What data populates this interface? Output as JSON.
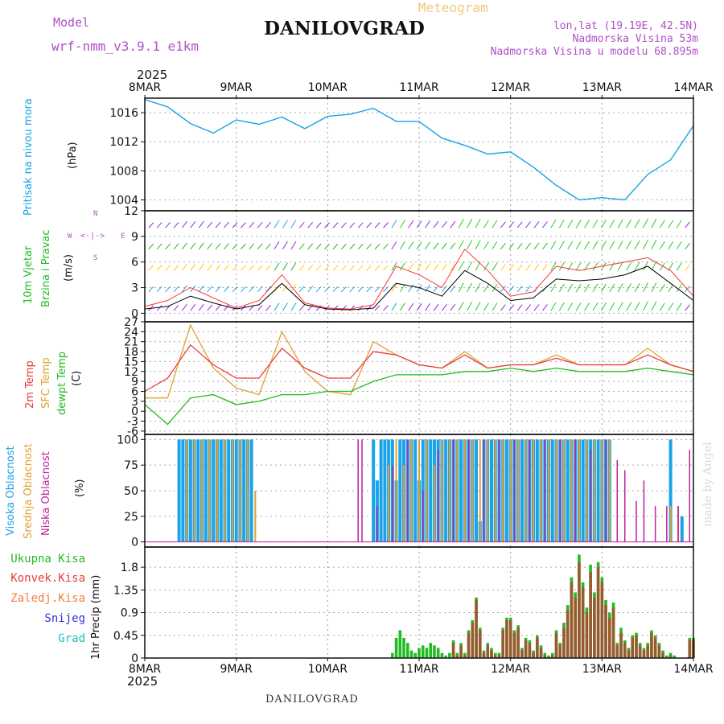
{
  "header": {
    "model_label": "Model",
    "model_name": "wrf-nmm_v3.9.1  e1km",
    "station": "DANILOVGRAD",
    "product": "Meteogram",
    "lonlat": "lon,lat (19.19E, 42.5N)",
    "elevation": "Nadmorska Visina 53m",
    "model_elevation": "Nadmorska Visina u modelu 68.895m"
  },
  "footer": {
    "station": "DANILOVGRAD",
    "credit": "made by Angel"
  },
  "x_axis": {
    "year": "2025",
    "labels": [
      "8MAR",
      "9MAR",
      "10MAR",
      "11MAR",
      "12MAR",
      "13MAR",
      "14MAR"
    ]
  },
  "colors": {
    "pressure": "#1aa3e8",
    "wind_speed": "#000000",
    "wind_gust": "#ff3333",
    "temp2m": "#e83a3a",
    "sfc_temp": "#e0a030",
    "dewpt": "#22bb22",
    "cloud_high": "#1aa3e8",
    "cloud_mid": "#e0a030",
    "cloud_low": "#c020a0",
    "precip_total": "#22bb22",
    "precip_conv": "#e83a3a"
  },
  "chart_data": [
    {
      "type": "line",
      "panel": "pressure",
      "ylabel_left": "Pritisak na nivou mora",
      "ylabel_unit": "(hPa)",
      "ylim": [
        1002.5,
        1018
      ],
      "yticks": [
        "1016",
        "1012",
        "1008",
        "1004"
      ],
      "x_hours": [
        0,
        6,
        12,
        18,
        24,
        30,
        36,
        42,
        48,
        54,
        60,
        66,
        72,
        78,
        84,
        90,
        96,
        102,
        108,
        114,
        120,
        126,
        132,
        138,
        144
      ],
      "series": [
        {
          "values": [
            1017.8,
            1016.8,
            1014.5,
            1013.2,
            1015.0,
            1014.4,
            1015.4,
            1013.8,
            1015.5,
            1015.8,
            1016.6,
            1014.8,
            1014.8,
            1012.5,
            1011.5,
            1010.3,
            1010.6,
            1008.5,
            1006.0,
            1004.0,
            1004.3,
            1004.0,
            1007.5,
            1009.5,
            1014.2
          ]
        }
      ]
    },
    {
      "type": "line",
      "panel": "wind",
      "ylabel_left_1": "10m Vjetar",
      "ylabel_left_2": "Brzina i Pravac",
      "ylabel_unit": "(m/s)",
      "compass_n": "N",
      "compass_s": "S",
      "compass_e": "E",
      "compass_w": "W",
      "ylim": [
        -1,
        12
      ],
      "yticks": [
        "12",
        "9",
        "6",
        "3",
        "0"
      ],
      "x_hours": [
        0,
        6,
        12,
        18,
        24,
        30,
        36,
        42,
        48,
        54,
        60,
        66,
        72,
        78,
        84,
        90,
        96,
        102,
        108,
        114,
        120,
        126,
        132,
        138,
        144
      ],
      "series": [
        {
          "name": "speed",
          "values": [
            0.5,
            0.8,
            2.0,
            1.2,
            0.5,
            1.0,
            3.5,
            1.0,
            0.5,
            0.4,
            0.6,
            3.5,
            3.0,
            2.0,
            5.0,
            3.5,
            1.5,
            1.8,
            4.0,
            3.8,
            4.0,
            4.5,
            5.5,
            3.5,
            1.5
          ]
        },
        {
          "name": "gust",
          "values": [
            0.8,
            1.5,
            3.0,
            1.8,
            0.6,
            1.5,
            4.5,
            1.2,
            0.6,
            0.5,
            1.0,
            5.5,
            4.5,
            3.0,
            7.5,
            5.0,
            2.0,
            2.5,
            5.5,
            5.0,
            5.5,
            6.0,
            6.5,
            5.0,
            2.0
          ]
        }
      ]
    },
    {
      "type": "line",
      "panel": "temperature",
      "ylabel_left_1": "2m Temp",
      "ylabel_left_2": "SFC Temp",
      "ylabel_left_3": "dewpt Temp",
      "ylabel_unit": "(C)",
      "ylim": [
        -7,
        27
      ],
      "yticks": [
        "27",
        "24",
        "21",
        "18",
        "15",
        "12",
        "9",
        "6",
        "3",
        "0",
        "-3",
        "-6"
      ],
      "x_hours": [
        0,
        6,
        12,
        18,
        24,
        30,
        36,
        42,
        48,
        54,
        60,
        66,
        72,
        78,
        84,
        90,
        96,
        102,
        108,
        114,
        120,
        126,
        132,
        138,
        144
      ],
      "series": [
        {
          "name": "2m Temp",
          "values": [
            6,
            10,
            20,
            14,
            10,
            10,
            19,
            13,
            10,
            10,
            18,
            17,
            14,
            13,
            17,
            13,
            14,
            14,
            16,
            14,
            14,
            14,
            17,
            14,
            12
          ]
        },
        {
          "name": "SFC Temp",
          "values": [
            4,
            4,
            26,
            13,
            7,
            5,
            24,
            12,
            6,
            5,
            21,
            17,
            14,
            13,
            18,
            13,
            14,
            14,
            17,
            14,
            14,
            14,
            19,
            14,
            12
          ]
        },
        {
          "name": "dewpt Temp",
          "values": [
            2,
            -4,
            4,
            5,
            2,
            3,
            5,
            5,
            6,
            6,
            9,
            11,
            11,
            11,
            12,
            12,
            13,
            12,
            13,
            12,
            12,
            12,
            13,
            12,
            11
          ]
        }
      ]
    },
    {
      "type": "bar",
      "panel": "clouds",
      "ylabel_left_1": "Visoka Oblacnost",
      "ylabel_left_2": "Srednja Oblacnost",
      "ylabel_left_3": "Niska Oblacnost",
      "ylabel_unit": "(%)",
      "ylim": [
        -5,
        105
      ],
      "yticks": [
        "100",
        "75",
        "50",
        "25",
        "0"
      ],
      "series": [
        {
          "name": "Visoka Oblacnost",
          "x_hours": [
            9,
            10,
            11,
            12,
            13,
            14,
            15,
            16,
            17,
            18,
            19,
            20,
            21,
            22,
            23,
            24,
            25,
            26,
            27,
            28,
            60,
            61,
            62,
            63,
            64,
            65,
            66,
            67,
            68,
            69,
            70,
            71,
            72,
            73,
            74,
            75,
            76,
            77,
            78,
            79,
            80,
            81,
            82,
            83,
            84,
            85,
            86,
            87,
            88,
            89,
            90,
            91,
            92,
            93,
            94,
            95,
            96,
            97,
            98,
            99,
            100,
            101,
            102,
            103,
            104,
            105,
            106,
            107,
            108,
            109,
            110,
            111,
            112,
            113,
            114,
            115,
            116,
            117,
            118,
            119,
            120,
            121,
            122,
            138,
            141
          ],
          "values": [
            100,
            100,
            100,
            100,
            100,
            100,
            100,
            100,
            100,
            100,
            100,
            100,
            100,
            100,
            100,
            100,
            100,
            100,
            100,
            100,
            100,
            60,
            100,
            100,
            100,
            100,
            60,
            100,
            100,
            100,
            100,
            100,
            60,
            100,
            100,
            100,
            100,
            100,
            100,
            100,
            100,
            100,
            100,
            100,
            100,
            100,
            100,
            100,
            20,
            100,
            100,
            100,
            100,
            100,
            100,
            100,
            100,
            100,
            100,
            100,
            100,
            100,
            100,
            100,
            100,
            100,
            100,
            100,
            100,
            100,
            100,
            100,
            100,
            100,
            100,
            100,
            100,
            100,
            100,
            100,
            100,
            100,
            100,
            100,
            25
          ]
        },
        {
          "name": "Srednja Oblacnost",
          "x_hours": [
            11,
            13,
            15,
            17,
            19,
            21,
            23,
            25,
            27,
            29,
            64,
            66,
            68,
            70,
            72,
            74,
            76,
            78,
            80,
            82,
            84,
            86,
            88,
            90,
            92,
            94,
            96,
            98,
            100,
            102,
            104,
            106,
            108,
            110,
            112,
            114,
            116,
            118,
            120,
            122,
            138,
            140
          ],
          "values": [
            100,
            100,
            100,
            100,
            100,
            100,
            100,
            100,
            100,
            50,
            75,
            100,
            75,
            100,
            100,
            100,
            75,
            100,
            100,
            100,
            100,
            100,
            100,
            100,
            100,
            100,
            100,
            100,
            100,
            100,
            100,
            100,
            100,
            100,
            100,
            100,
            100,
            100,
            100,
            100,
            35,
            35
          ]
        },
        {
          "name": "Niska Oblacnost",
          "x_hours": [
            56,
            57,
            61,
            65,
            69,
            73,
            77,
            81,
            85,
            89,
            93,
            97,
            101,
            105,
            109,
            113,
            117,
            121,
            124,
            126,
            129,
            131,
            134,
            137,
            140,
            143
          ],
          "values": [
            100,
            100,
            35,
            75,
            100,
            50,
            90,
            100,
            100,
            100,
            100,
            100,
            100,
            100,
            100,
            100,
            90,
            100,
            80,
            70,
            40,
            60,
            35,
            35,
            35,
            90
          ]
        }
      ]
    },
    {
      "type": "bar",
      "panel": "precipitation",
      "legend": [
        "Ukupna Kisa",
        "Konvek.Kisa",
        "Zaledj.Kisa",
        "Snijeg",
        "Grad"
      ],
      "ylabel_unit": "1hr Precip (mm)",
      "ylim": [
        0,
        2.2
      ],
      "yticks": [
        "1.8",
        "1.35",
        "0.9",
        "0.45",
        "0"
      ],
      "x_hours": [
        65,
        66,
        67,
        68,
        69,
        70,
        71,
        72,
        73,
        74,
        75,
        76,
        77,
        78,
        79,
        80,
        81,
        82,
        83,
        84,
        85,
        86,
        87,
        88,
        89,
        90,
        91,
        92,
        93,
        94,
        95,
        96,
        97,
        98,
        99,
        100,
        101,
        102,
        103,
        104,
        105,
        106,
        107,
        108,
        109,
        110,
        111,
        112,
        113,
        114,
        115,
        116,
        117,
        118,
        119,
        120,
        121,
        122,
        123,
        124,
        125,
        126,
        127,
        128,
        129,
        130,
        131,
        132,
        133,
        134,
        135,
        136,
        137,
        138,
        139,
        140,
        141,
        142,
        143,
        144
      ],
      "series": [
        {
          "name": "Ukupna Kisa",
          "values": [
            0.1,
            0.4,
            0.55,
            0.4,
            0.3,
            0.15,
            0.1,
            0.2,
            0.25,
            0.2,
            0.3,
            0.25,
            0.2,
            0.1,
            0.05,
            0.1,
            0.35,
            0.1,
            0.3,
            0.1,
            0.55,
            0.75,
            1.2,
            0.6,
            0.15,
            0.3,
            0.2,
            0.1,
            0.1,
            0.6,
            0.8,
            0.8,
            0.55,
            0.65,
            0.2,
            0.4,
            0.35,
            0.15,
            0.45,
            0.25,
            0.1,
            0.05,
            0.1,
            0.55,
            0.3,
            0.7,
            1.05,
            1.6,
            1.3,
            2.05,
            1.5,
            1.0,
            1.85,
            1.3,
            1.9,
            1.6,
            1.15,
            0.9,
            1.1,
            0.3,
            0.6,
            0.35,
            0.2,
            0.45,
            0.5,
            0.3,
            0.2,
            0.3,
            0.55,
            0.45,
            0.3,
            0.15,
            0.05,
            0.1,
            0.05,
            0,
            0,
            0,
            0.4,
            0.4
          ]
        },
        {
          "name": "Konvek.Kisa",
          "values": [
            0,
            0,
            0,
            0,
            0,
            0,
            0,
            0,
            0,
            0,
            0,
            0,
            0,
            0,
            0,
            0,
            0.3,
            0.05,
            0.25,
            0.05,
            0.5,
            0.7,
            1.15,
            0.55,
            0.1,
            0.25,
            0.15,
            0.05,
            0.05,
            0.55,
            0.75,
            0.75,
            0.5,
            0.6,
            0.15,
            0.35,
            0.3,
            0.1,
            0.4,
            0.2,
            0.05,
            0,
            0.05,
            0.5,
            0.25,
            0.6,
            0.95,
            1.5,
            1.2,
            1.9,
            1.4,
            0.9,
            1.7,
            1.2,
            1.8,
            1.5,
            1.05,
            0.8,
            1.0,
            0.25,
            0.5,
            0.3,
            0.15,
            0.4,
            0.45,
            0.25,
            0.15,
            0.25,
            0.5,
            0.4,
            0.25,
            0.1,
            0,
            0.05,
            0,
            0,
            0,
            0,
            0.35,
            0.35
          ]
        }
      ]
    }
  ]
}
